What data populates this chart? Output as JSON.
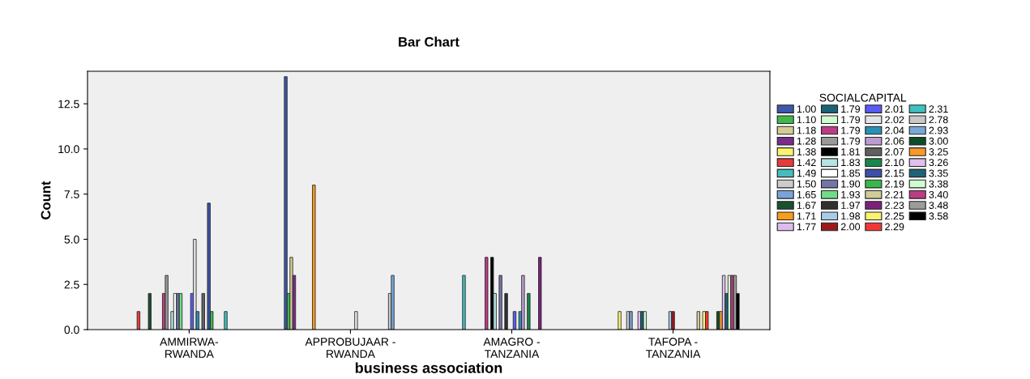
{
  "chart_data": {
    "type": "bar",
    "title": "Bar Chart",
    "xlabel": "business association",
    "ylabel": "Count",
    "legend_title": "SOCIALCAPITAL",
    "legend": "right",
    "grid": false,
    "categories": [
      "AMMIRWA-\nRWANDA",
      "APPROBUJAAR -\nRWANDA",
      "AMAGRO -\nTANZANIA",
      "TAFOPA -\nTANZANIA"
    ],
    "ylim": [
      0,
      14.3
    ],
    "yticks": [
      {
        "value": 0,
        "label": "0.0"
      },
      {
        "value": 2.5,
        "label": "2.5"
      },
      {
        "value": 5,
        "label": "5.0"
      },
      {
        "value": 7.5,
        "label": "7.5"
      },
      {
        "value": 10,
        "label": "10.0"
      },
      {
        "value": 12.5,
        "label": "12.5"
      }
    ],
    "series": [
      {
        "name": "1.00",
        "color": "#3e58ac",
        "values": [
          null,
          14,
          null,
          null
        ]
      },
      {
        "name": "1.10",
        "color": "#3eb84a",
        "values": [
          null,
          2,
          null,
          null
        ]
      },
      {
        "name": "1.18",
        "color": "#d4cc94",
        "values": [
          null,
          4,
          null,
          null
        ]
      },
      {
        "name": "1.28",
        "color": "#7a2a8a",
        "values": [
          null,
          3,
          null,
          null
        ]
      },
      {
        "name": "1.38",
        "color": "#fbf46e",
        "values": [
          null,
          null,
          null,
          1
        ]
      },
      {
        "name": "1.42",
        "color": "#e83a3a",
        "values": [
          1,
          null,
          null,
          null
        ]
      },
      {
        "name": "1.49",
        "color": "#48bcbc",
        "values": [
          null,
          null,
          3,
          null
        ]
      },
      {
        "name": "1.50",
        "color": "#cccccc",
        "values": [
          null,
          null,
          null,
          1
        ]
      },
      {
        "name": "1.65",
        "color": "#78a4d8",
        "values": [
          null,
          null,
          null,
          1
        ]
      },
      {
        "name": "1.67",
        "color": "#1a5030",
        "values": [
          2,
          null,
          null,
          null
        ]
      },
      {
        "name": "1.71",
        "color": "#f89c20",
        "values": [
          null,
          8,
          null,
          null
        ]
      },
      {
        "name": "1.77",
        "color": "#dcbcec",
        "values": [
          null,
          null,
          null,
          1
        ]
      },
      {
        "name": "1.79",
        "color": "#1a6478",
        "values": [
          null,
          null,
          null,
          1
        ]
      },
      {
        "name": "1.79",
        "color": "#d0fcd0",
        "values": [
          null,
          null,
          null,
          1
        ]
      },
      {
        "name": "1.79",
        "color": "#bc3c84",
        "values": [
          2,
          null,
          4,
          null
        ]
      },
      {
        "name": "1.79",
        "color": "#999999",
        "values": [
          3,
          null,
          null,
          null
        ]
      },
      {
        "name": "1.81",
        "color": "#000000",
        "values": [
          null,
          null,
          4,
          null
        ]
      },
      {
        "name": "1.83",
        "color": "#b4e4e4",
        "values": [
          1,
          null,
          2,
          null
        ]
      },
      {
        "name": "1.85",
        "color": "#ffffff",
        "values": [
          2,
          null,
          null,
          null
        ]
      },
      {
        "name": "1.90",
        "color": "#7474a8",
        "values": [
          2,
          null,
          3,
          null
        ]
      },
      {
        "name": "1.93",
        "color": "#70dc88",
        "values": [
          2,
          null,
          null,
          null
        ]
      },
      {
        "name": "1.97",
        "color": "#303030",
        "values": [
          null,
          null,
          2,
          null
        ]
      },
      {
        "name": "1.98",
        "color": "#a8cce8",
        "values": [
          null,
          null,
          null,
          1
        ]
      },
      {
        "name": "2.00",
        "color": "#9c1a1a",
        "values": [
          null,
          null,
          null,
          1
        ]
      },
      {
        "name": "2.01",
        "color": "#5a5af8",
        "values": [
          2,
          null,
          1,
          null
        ]
      },
      {
        "name": "2.02",
        "color": "#e4e4e4",
        "values": [
          5,
          1,
          null,
          null
        ]
      },
      {
        "name": "2.04",
        "color": "#2890b4",
        "values": [
          1,
          null,
          1,
          null
        ]
      },
      {
        "name": "2.06",
        "color": "#bc9cd0",
        "values": [
          null,
          null,
          3,
          null
        ]
      },
      {
        "name": "2.07",
        "color": "#606060",
        "values": [
          2,
          null,
          null,
          null
        ]
      },
      {
        "name": "2.10",
        "color": "#18884c",
        "values": [
          null,
          null,
          2,
          null
        ]
      },
      {
        "name": "2.15",
        "color": "#3c50a8",
        "values": [
          7,
          null,
          null,
          null
        ]
      },
      {
        "name": "2.19",
        "color": "#38b848",
        "values": [
          1,
          null,
          null,
          null
        ]
      },
      {
        "name": "2.21",
        "color": "#d0cc98",
        "values": [
          null,
          null,
          null,
          1
        ]
      },
      {
        "name": "2.23",
        "color": "#7c207c",
        "values": [
          null,
          null,
          4,
          null
        ]
      },
      {
        "name": "2.25",
        "color": "#f8f470",
        "values": [
          null,
          null,
          null,
          1
        ]
      },
      {
        "name": "2.29",
        "color": "#f03838",
        "values": [
          null,
          null,
          null,
          1
        ]
      },
      {
        "name": "2.31",
        "color": "#40c0c0",
        "values": [
          1,
          null,
          null,
          null
        ]
      },
      {
        "name": "2.78",
        "color": "#c8c8c8",
        "values": [
          null,
          2,
          null,
          null
        ]
      },
      {
        "name": "2.93",
        "color": "#78a8d8",
        "values": [
          null,
          3,
          null,
          null
        ]
      },
      {
        "name": "3.00",
        "color": "#0c4c28",
        "values": [
          null,
          null,
          null,
          1
        ]
      },
      {
        "name": "3.25",
        "color": "#f8982c",
        "values": [
          null,
          null,
          null,
          1
        ]
      },
      {
        "name": "3.26",
        "color": "#e0c0ec",
        "values": [
          null,
          null,
          null,
          3
        ]
      },
      {
        "name": "3.35",
        "color": "#1c6478",
        "values": [
          null,
          null,
          null,
          2
        ]
      },
      {
        "name": "3.38",
        "color": "#d0fcd0",
        "values": [
          null,
          null,
          null,
          3
        ]
      },
      {
        "name": "3.40",
        "color": "#bc3c84",
        "values": [
          null,
          null,
          null,
          3
        ]
      },
      {
        "name": "3.48",
        "color": "#9c9c9c",
        "values": [
          null,
          null,
          null,
          3
        ]
      },
      {
        "name": "3.58",
        "color": "#000000",
        "values": [
          null,
          null,
          null,
          2
        ]
      }
    ]
  }
}
